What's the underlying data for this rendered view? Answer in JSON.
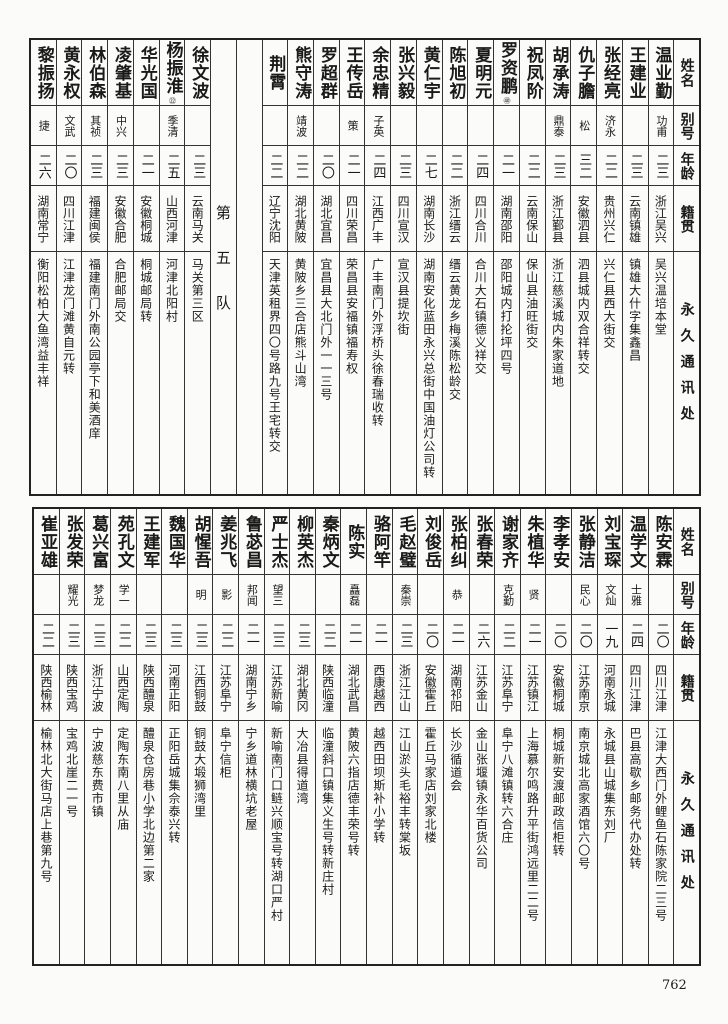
{
  "headers": {
    "name": "姓名",
    "alias": "别号",
    "age": "年龄",
    "native": "籍贯",
    "address": "永久通讯处"
  },
  "top_block": {
    "section_label": "第五队",
    "people_before_section": [
      {
        "name": "温业勤",
        "alias": "功甫",
        "age": "二三",
        "native": "浙江吴兴",
        "address": "吴兴温培本堂"
      },
      {
        "name": "王建业",
        "alias": "",
        "age": "二三",
        "native": "云南镇雄",
        "address": "镇雄大什字集鑫昌"
      },
      {
        "name": "张经亮",
        "alias": "济永",
        "age": "二二",
        "native": "贵州兴仁",
        "address": "兴仁县西大街交"
      },
      {
        "name": "仇子膽",
        "alias": "松",
        "age": "三二",
        "native": "安徽泗县",
        "address": "泗县城内双合祥转交"
      },
      {
        "name": "胡承涛",
        "alias": "鼎泰",
        "age": "二三",
        "native": "浙江鄞县",
        "address": "浙江慈溪城内朱家道地"
      },
      {
        "name": "祝凤阶",
        "alias": "",
        "age": "二二",
        "native": "云南保山",
        "address": "保山县油旺街交"
      },
      {
        "name": "罗资鹏",
        "note": "㊵",
        "alias": "",
        "age": "二一",
        "native": "湖南邵阳",
        "address": "邵阳城内打抡坪四号"
      },
      {
        "name": "夏明元",
        "alias": "",
        "age": "二四",
        "native": "四川合川",
        "address": "合川大石镇德义祥交"
      },
      {
        "name": "陈旭初",
        "alias": "",
        "age": "二二",
        "native": "浙江缙云",
        "address": "缙云黄龙乡梅溪陈松龄交"
      },
      {
        "name": "黄仁宇",
        "alias": "",
        "age": "二七",
        "native": "湖南长沙",
        "address": "湖南安化蓝田永兴总街中国油灯公司转"
      },
      {
        "name": "张兴毅",
        "alias": "",
        "age": "二三",
        "native": "四川宣汉",
        "address": "宣汉县提坎街"
      },
      {
        "name": "余忠精",
        "alias": "子英",
        "age": "二四",
        "native": "江西广丰",
        "address": "广丰南门外浮桥头徐春瑞收转"
      },
      {
        "name": "王传岳",
        "alias": "策",
        "age": "二一",
        "native": "四川荣昌",
        "address": "荣昌县安福镇福寿权"
      },
      {
        "name": "罗超群",
        "alias": "",
        "age": "二〇",
        "native": "湖北宜昌",
        "address": "宜昌县大北门外一一三号"
      },
      {
        "name": "熊守涛",
        "alias": "靖波",
        "age": "二二",
        "native": "湖北黄陂",
        "address": "黄陂乡三合店熊斗山湾"
      },
      {
        "name": "荆霄",
        "alias": "",
        "age": "二二",
        "native": "辽宁沈阳",
        "address": "天津英租界四〇号路九号王宅转交"
      }
    ],
    "people_after_section": [
      {
        "name": "徐文波",
        "alias": "",
        "age": "二三",
        "native": "云南马关",
        "address": "马关第三区"
      },
      {
        "name": "杨振淮",
        "note": "㉒",
        "alias": "季清",
        "age": "二五",
        "native": "山西河津",
        "address": "河津北阳村"
      },
      {
        "name": "华光国",
        "alias": "",
        "age": "二一",
        "native": "安徽桐城",
        "address": "桐城邮局转"
      },
      {
        "name": "凌肇基",
        "alias": "中兴",
        "age": "二三",
        "native": "安徽合肥",
        "address": "合肥邮局交"
      },
      {
        "name": "林伯森",
        "alias": "其祯",
        "age": "二三",
        "native": "福建闽侯",
        "address": "福建南门外南公园亭下和美酒庠"
      },
      {
        "name": "黄永权",
        "alias": "文武",
        "age": "二〇",
        "native": "四川江津",
        "address": "江津龙门滩黄自元转"
      },
      {
        "name": "黎振扬",
        "alias": "捷",
        "age": "二六",
        "native": "湖南常宁",
        "address": "衡阳松柏大鱼湾益丰祥"
      }
    ]
  },
  "bottom_block": {
    "people": [
      {
        "name": "陈安霖",
        "alias": "",
        "age": "二〇",
        "native": "四川江津",
        "address": "江津大西门外鲤鱼石陈家院二三号"
      },
      {
        "name": "温学文",
        "alias": "士雅",
        "age": "二四",
        "native": "四川江津",
        "address": "巴县高歇乡邮务代办处转"
      },
      {
        "name": "刘宝琛",
        "alias": "文灿",
        "age": "一九",
        "native": "河南永城",
        "address": "永城县山城集东刘厂"
      },
      {
        "name": "张静洁",
        "alias": "民心",
        "age": "二〇",
        "native": "江苏南京",
        "address": "南京城北高家酒馆六〇号"
      },
      {
        "name": "李孝安",
        "alias": "",
        "age": "二〇",
        "native": "安徽桐城",
        "address": "桐城新安渡邮政信柜转"
      },
      {
        "name": "朱植华",
        "alias": "贤",
        "age": "二一",
        "native": "江苏镇江",
        "address": "上海慕尔鸣路升平街鸿远里二二号"
      },
      {
        "name": "谢家齐",
        "alias": "克勤",
        "age": "二二",
        "native": "江苏阜宁",
        "address": "阜宁八滩镇转六合庄"
      },
      {
        "name": "张春荣",
        "alias": "",
        "age": "二六",
        "native": "江苏金山",
        "address": "金山张堰镇永华百货公司"
      },
      {
        "name": "张柏纠",
        "alias": "恭",
        "age": "二一",
        "native": "湖南祁阳",
        "address": "长沙循道会"
      },
      {
        "name": "刘俊岳",
        "alias": "",
        "age": "二〇",
        "native": "安徽霍丘",
        "address": "霍丘马家店刘家北楼"
      },
      {
        "name": "毛赵璧",
        "alias": "秦崇",
        "age": "二三",
        "native": "浙江江山",
        "address": "江山淤头毛裕丰转棠坂"
      },
      {
        "name": "骆阿竿",
        "alias": "",
        "age": "二一",
        "native": "西康越西",
        "address": "越西田坝斯补小学转"
      },
      {
        "name": "陈实",
        "alias": "矗磊",
        "age": "二一",
        "native": "湖北武昌",
        "address": "黄陂六指店德丰荣号转"
      },
      {
        "name": "秦炳文",
        "alias": "",
        "age": "二二",
        "native": "陕西临潼",
        "address": "临潼斜口镇集义生号转新庄村"
      },
      {
        "name": "柳英杰",
        "alias": "",
        "age": "二三",
        "native": "湖北黄冈",
        "address": "大冶县得道湾"
      },
      {
        "name": "严士杰",
        "alias": "望三",
        "age": "二三",
        "native": "江苏新喻",
        "address": "新喻南门口鲢兴顺宝号转湖口严村"
      },
      {
        "name": "鲁苾昌",
        "alias": "邦闻",
        "age": "二一",
        "native": "湖南宁乡",
        "address": "宁乡道林横坑老屋"
      },
      {
        "name": "姜兆飞",
        "alias": "影",
        "age": "二二",
        "native": "江苏阜宁",
        "address": "阜宁信柜"
      },
      {
        "name": "胡惺吾",
        "alias": "明",
        "age": "二三",
        "native": "江西铜鼓",
        "address": "铜鼓大塅狮湾里"
      },
      {
        "name": "魏国华",
        "alias": "",
        "age": "二三",
        "native": "河南正阳",
        "address": "正阳岳城集佘泰兴转"
      },
      {
        "name": "王建军",
        "alias": "",
        "age": "二三",
        "native": "陕西醴泉",
        "address": "醴泉仓房巷小学北边第二家"
      },
      {
        "name": "苑孔文",
        "alias": "学一",
        "age": "二二",
        "native": "山西定陶",
        "address": "定陶东南八里从庙"
      },
      {
        "name": "葛兴富",
        "alias": "梦龙",
        "age": "二三",
        "native": "浙江宁波",
        "address": "宁波慈东费市镇"
      },
      {
        "name": "张发荣",
        "alias": "耀光",
        "age": "二三",
        "native": "陕西宝鸡",
        "address": "宝鸡北崖二一号"
      },
      {
        "name": "崔亚雄",
        "alias": "",
        "age": "二二",
        "native": "陕西榆林",
        "address": "榆林北大街马店上巷第九号"
      }
    ]
  },
  "page_number": "762"
}
